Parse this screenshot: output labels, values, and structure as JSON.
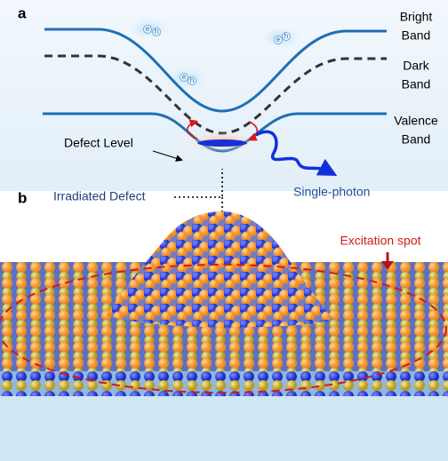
{
  "panel_a": {
    "label": "a",
    "bands": [
      {
        "lines": [
          "Bright",
          "Band"
        ]
      },
      {
        "lines": [
          "Dark",
          "Band"
        ]
      },
      {
        "lines": [
          "Valence",
          "Band"
        ]
      }
    ],
    "defect_level": "Defect Level",
    "emission": "Single-photon",
    "excitons": [
      {
        "electron": "e",
        "hole": "h"
      },
      {
        "electron": "e",
        "hole": "h"
      },
      {
        "electron": "e",
        "hole": "h"
      }
    ]
  },
  "panel_b": {
    "label": "b",
    "irradiated_defect": "Irradiated Defect",
    "excitation_spot": "Excitation spot"
  }
}
